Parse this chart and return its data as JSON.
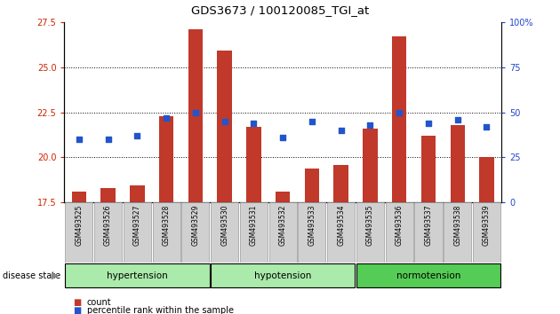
{
  "title": "GDS3673 / 100120085_TGI_at",
  "samples": [
    "GSM493525",
    "GSM493526",
    "GSM493527",
    "GSM493528",
    "GSM493529",
    "GSM493530",
    "GSM493531",
    "GSM493532",
    "GSM493533",
    "GSM493534",
    "GSM493535",
    "GSM493536",
    "GSM493537",
    "GSM493538",
    "GSM493539"
  ],
  "counts": [
    18.1,
    18.3,
    18.45,
    22.3,
    27.1,
    25.9,
    21.7,
    18.1,
    19.4,
    19.6,
    21.6,
    26.7,
    21.2,
    21.8,
    20.0
  ],
  "percentiles": [
    35,
    35,
    37,
    47,
    50,
    45,
    44,
    36,
    45,
    40,
    43,
    50,
    44,
    46,
    42
  ],
  "ylim_left": [
    17.5,
    27.5
  ],
  "ylim_right": [
    0,
    100
  ],
  "yticks_left": [
    17.5,
    20.0,
    22.5,
    25.0,
    27.5
  ],
  "yticks_right": [
    0,
    25,
    50,
    75,
    100
  ],
  "bar_color": "#C0392B",
  "scatter_color": "#2255CC",
  "group_labels": [
    "hypertension",
    "hypotension",
    "normotension"
  ],
  "group_boundaries": [
    0,
    5,
    10,
    15
  ],
  "group_colors": [
    "#AAEAAA",
    "#AAEAAA",
    "#55CC55"
  ],
  "disease_state_label": "disease state",
  "legend_count_label": "count",
  "legend_percentile_label": "percentile rank within the sample",
  "ytick_left_color": "#CC2200",
  "ytick_right_color": "#2244CC",
  "grid_yticks": [
    20.0,
    22.5,
    25.0
  ]
}
